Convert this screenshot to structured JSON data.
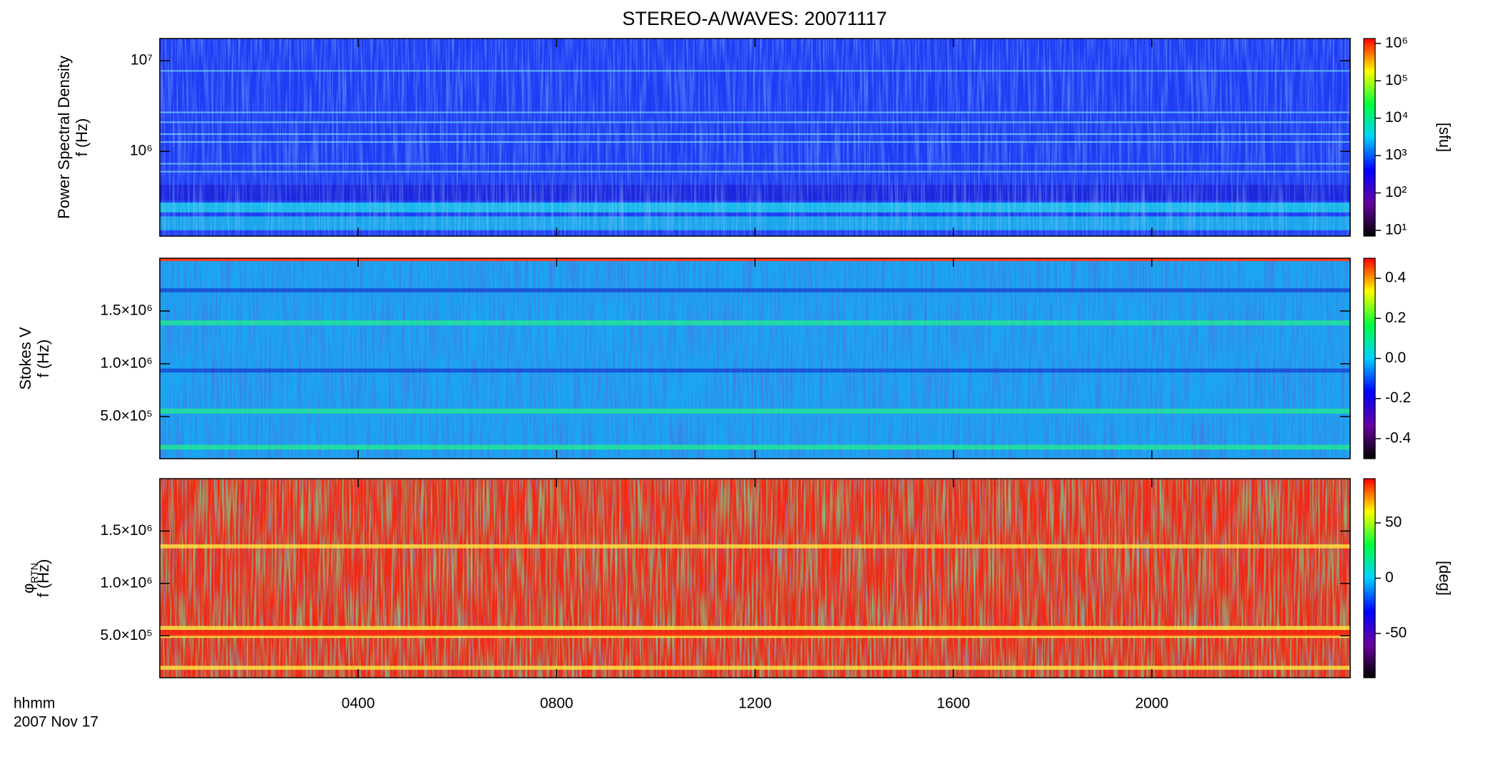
{
  "title": "STEREO-A/WAVES: 20071117",
  "x_label": "hhmm",
  "date_label": "2007 Nov 17",
  "chart_data": [
    {
      "type": "heatmap",
      "ylabel": "Power Spectral Density",
      "ylabel2": "f (Hz)",
      "ylog": true,
      "xlim": [
        0,
        24
      ],
      "xticks": [
        {
          "value": 4,
          "label": "0400"
        },
        {
          "value": 8,
          "label": "0800"
        },
        {
          "value": 12,
          "label": "1200"
        },
        {
          "value": 16,
          "label": "1600"
        },
        {
          "value": 20,
          "label": "2000"
        }
      ],
      "ylim": [
        116000,
        17600000
      ],
      "yticks": [
        {
          "value": 1000000,
          "label": "10⁶"
        },
        {
          "value": 10000000,
          "label": "10⁷"
        }
      ],
      "colorbar_label": "[sfu]",
      "clog": true,
      "clim": [
        7,
        1350000
      ],
      "cticks": [
        {
          "value": 10,
          "label": "10¹"
        },
        {
          "value": 100,
          "label": "10²"
        },
        {
          "value": 1000,
          "label": "10³"
        },
        {
          "value": 10000,
          "label": "10⁴"
        },
        {
          "value": 100000,
          "label": "10⁵"
        },
        {
          "value": 1000000,
          "label": "10⁶"
        }
      ],
      "colormap": [
        "#000000",
        "#6a00a0",
        "#0000ff",
        "#00d0ff",
        "#00ff40",
        "#ffff00",
        "#ff0000"
      ],
      "texture": [
        "#1e3cf4",
        "#4a90ff",
        "#18c8ea"
      ]
    },
    {
      "type": "heatmap",
      "ylabel": "Stokes V",
      "ylabel2": "f (Hz)",
      "ylog": false,
      "xlim": [
        0,
        24
      ],
      "xticks": [
        {
          "value": 4,
          "label": "0400"
        },
        {
          "value": 8,
          "label": "0800"
        },
        {
          "value": 12,
          "label": "1200"
        },
        {
          "value": 16,
          "label": "1600"
        },
        {
          "value": 20,
          "label": "2000"
        }
      ],
      "ylim": [
        100000,
        2000000
      ],
      "yticks": [
        {
          "value": 500000,
          "label": "5.0×10⁵"
        },
        {
          "value": 1000000,
          "label": "1.0×10⁶"
        },
        {
          "value": 1500000,
          "label": "1.5×10⁶"
        }
      ],
      "clog": false,
      "clim": [
        -0.5,
        0.5
      ],
      "cticks": [
        -0.4,
        -0.2,
        {
          "value": 0,
          "label": "0.0"
        },
        0.2,
        0.4
      ],
      "colormap": [
        "#000000",
        "#6a00a0",
        "#0000ff",
        "#00d0ff",
        "#00ff40",
        "#ffff00",
        "#ff0000"
      ],
      "texture": [
        "#1aa6f0",
        "#1428c8",
        "#22e890"
      ]
    },
    {
      "type": "heatmap",
      "ylabel": "φ",
      "ylabel_sub": "RTN",
      "ylabel2": "f (Hz)",
      "ylog": false,
      "xlim": [
        0,
        24
      ],
      "xticks": [
        {
          "value": 4,
          "label": "0400"
        },
        {
          "value": 8,
          "label": "0800"
        },
        {
          "value": 12,
          "label": "1200"
        },
        {
          "value": 16,
          "label": "1600"
        },
        {
          "value": 20,
          "label": "2000"
        }
      ],
      "ylim": [
        100000,
        2000000
      ],
      "yticks": [
        {
          "value": 500000,
          "label": "5.0×10⁵"
        },
        {
          "value": 1000000,
          "label": "1.0×10⁶"
        },
        {
          "value": 1500000,
          "label": "1.5×10⁶"
        }
      ],
      "colorbar_label": "[deg]",
      "clog": false,
      "clim": [
        -90,
        90
      ],
      "cticks": [
        -50,
        0,
        50
      ],
      "colormap": [
        "#000000",
        "#6a00a0",
        "#0000ff",
        "#00d0ff",
        "#00ff40",
        "#ffff00",
        "#ff0000"
      ],
      "texture": [
        "#f42812",
        "#22d860",
        "#2a44ff"
      ]
    }
  ]
}
